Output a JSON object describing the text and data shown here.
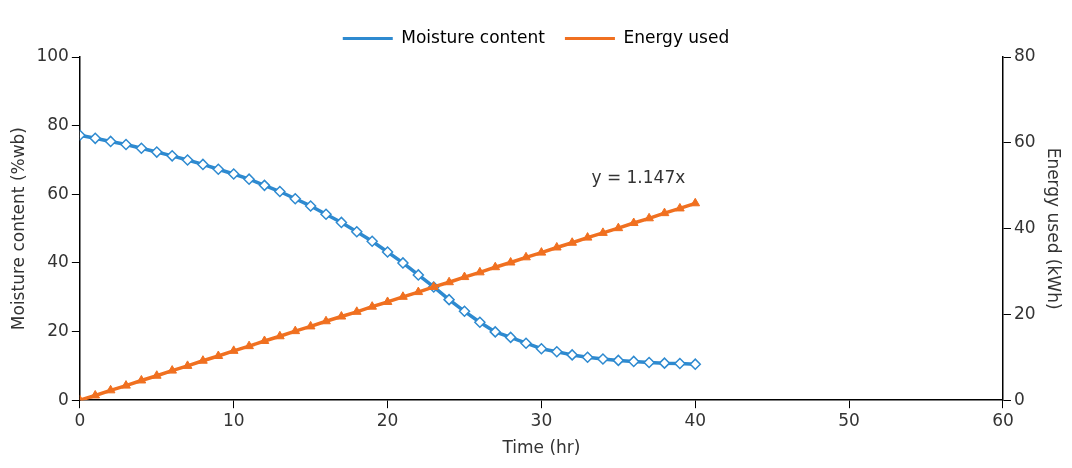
{
  "chart_data": {
    "type": "line",
    "xlabel": "Time (hr)",
    "ylabel": "Moisture content (%wb)",
    "y2label": "Energy used (kWh)",
    "x": [
      0,
      1,
      2,
      3,
      4,
      5,
      6,
      7,
      8,
      9,
      10,
      11,
      12,
      13,
      14,
      15,
      16,
      17,
      18,
      19,
      20,
      21,
      22,
      23,
      24,
      25,
      26,
      27,
      28,
      29,
      30,
      31,
      32,
      33,
      34,
      35,
      36,
      37,
      38,
      39,
      40
    ],
    "series": [
      {
        "name": "Moisture content",
        "color": "#2e8ad0",
        "marker": "diamond",
        "values": [
          77.2,
          76.3,
          75.4,
          74.5,
          73.4,
          72.3,
          71.2,
          70.0,
          68.7,
          67.3,
          65.9,
          64.4,
          62.6,
          60.8,
          58.7,
          56.6,
          54.2,
          51.8,
          49.1,
          46.3,
          43.2,
          40.0,
          36.5,
          33.0,
          29.3,
          25.9,
          22.7,
          19.9,
          18.3,
          16.6,
          15.0,
          14.1,
          13.2,
          12.5,
          12.0,
          11.6,
          11.3,
          11.0,
          10.8,
          10.7,
          10.5
        ]
      },
      {
        "name": "Energy used",
        "color": "#f07020",
        "marker": "triangle",
        "axis": "y2",
        "values": [
          0,
          1.1,
          2.3,
          3.4,
          4.6,
          5.7,
          6.9,
          8.0,
          9.2,
          10.3,
          11.5,
          12.6,
          13.8,
          14.9,
          16.1,
          17.2,
          18.4,
          19.5,
          20.6,
          21.8,
          22.9,
          24.1,
          25.2,
          26.4,
          27.5,
          28.7,
          29.8,
          31.0,
          32.1,
          33.3,
          34.4,
          35.6,
          36.7,
          37.9,
          39.0,
          40.1,
          41.3,
          42.4,
          43.6,
          44.7,
          45.9
        ]
      }
    ],
    "xlim": [
      0,
      60
    ],
    "xticks": [
      0,
      10,
      20,
      30,
      40,
      50,
      60
    ],
    "ylim": [
      0,
      100
    ],
    "yticks": [
      0,
      20,
      40,
      60,
      80,
      100
    ],
    "y2lim": [
      0,
      80
    ],
    "y2ticks": [
      0,
      20,
      40,
      60,
      80
    ],
    "annotations": [
      "y = 1.147x"
    ],
    "grid": false,
    "legend": "top"
  }
}
